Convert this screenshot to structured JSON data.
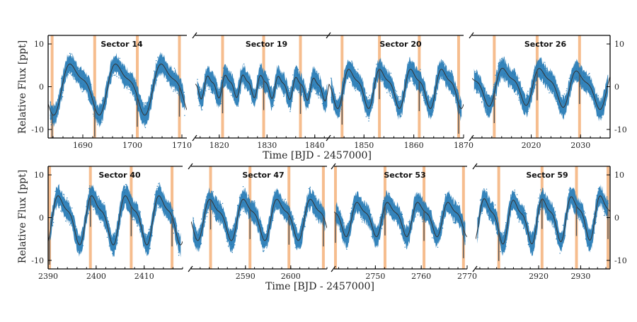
{
  "chart_data": {
    "type": "line",
    "series_color": "#1f77b4",
    "model_color": "#333333",
    "transit_band_color": "#f5b27a",
    "ylabel": "Relative Flux [ppt]",
    "xlabel": "Time [BJD - 2457000]",
    "ylim": [
      -12,
      12
    ],
    "yticks": [
      -10,
      0,
      10
    ],
    "rows": [
      {
        "panels": [
          {
            "sector": "Sector 14",
            "xlim": [
              1683,
              1711
            ],
            "xticks": [
              1690,
              1700,
              1710
            ],
            "period": 9.2,
            "phase": 1686,
            "amp": 5.2,
            "trend": 0,
            "transits": [
              1683.8,
              1692.4,
              1701.0,
              1709.5
            ]
          },
          {
            "sector": "Sector 19",
            "xlim": [
              1815,
              1843
            ],
            "xticks": [
              1820,
              1830,
              1840
            ],
            "period": 3.7,
            "phase": 1817,
            "amp": 2.3,
            "trend": 0.4,
            "transits": [
              1820.7,
              1829.3,
              1837.0
            ]
          },
          {
            "sector": "Sector 20",
            "xlim": [
              1843,
              1870
            ],
            "xticks": [
              1850,
              1860,
              1870
            ],
            "period": 6.2,
            "phase": 1846,
            "amp": 4.0,
            "trend": 0,
            "transits": [
              1845.6,
              1853.1,
              1861.1,
              1869.0
            ]
          },
          {
            "sector": "Sector 26",
            "xlim": [
              2008,
              2036
            ],
            "xticks": [
              2020,
              2030
            ],
            "period": 7.5,
            "phase": 2013,
            "amp": 3.8,
            "trend": 0.5,
            "transits": [
              2012.5,
              2021.2,
              2029.8
            ]
          }
        ]
      },
      {
        "panels": [
          {
            "sector": "Sector 40",
            "xlim": [
              2390,
              2418
            ],
            "xticks": [
              2390,
              2400,
              2410
            ],
            "period": 7.0,
            "phase": 2391,
            "amp": 5.0,
            "trend": 0,
            "transits": [
              2390.3,
              2398.8,
              2407.3,
              2415.8
            ]
          },
          {
            "sector": "Sector 47",
            "xlim": [
              2578,
              2608
            ],
            "xticks": [
              2590,
              2600
            ],
            "period": 7.4,
            "phase": 2581,
            "amp": 4.2,
            "trend": 0,
            "transits": [
              2582.3,
              2591.0,
              2599.6,
              2607.2
            ]
          },
          {
            "sector": "Sector 53",
            "xlim": [
              2741,
              2770
            ],
            "xticks": [
              2750,
              2760,
              2770
            ],
            "period": 6.6,
            "phase": 2745,
            "amp": 3.5,
            "trend": 0,
            "transits": [
              2741.3,
              2752.1,
              2760.6,
              2769.2
            ]
          },
          {
            "sector": "Sector 59",
            "xlim": [
              2905,
              2937
            ],
            "xticks": [
              2920,
              2930
            ],
            "period": 6.9,
            "phase": 2906,
            "amp": 4.5,
            "trend": -0.5,
            "transits": [
              2910.5,
              2920.8,
              2929.0,
              2936.5
            ]
          }
        ]
      }
    ]
  }
}
